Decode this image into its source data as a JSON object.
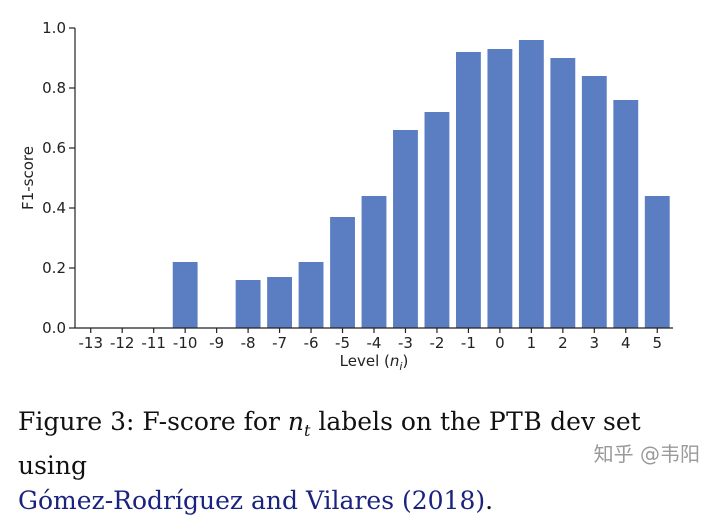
{
  "chart_data": {
    "type": "bar",
    "xlabel_main": "Level (",
    "xlabel_var": "n",
    "xlabel_sub": "i",
    "xlabel_end": ")",
    "ylabel": "F1-score",
    "ylim": [
      0,
      1.0
    ],
    "yticks": [
      "0.0",
      "0.2",
      "0.4",
      "0.6",
      "0.8",
      "1.0"
    ],
    "categories": [
      "-13",
      "-12",
      "-11",
      "-10",
      "-9",
      "-8",
      "-7",
      "-6",
      "-5",
      "-4",
      "-3",
      "-2",
      "-1",
      "0",
      "1",
      "2",
      "3",
      "4",
      "5"
    ],
    "values": [
      0,
      0,
      0,
      0.22,
      0,
      0.16,
      0.17,
      0.22,
      0.37,
      0.44,
      0.66,
      0.72,
      0.92,
      0.93,
      0.96,
      0.9,
      0.84,
      0.76,
      0.44
    ],
    "bar_color": "#5b7ec2",
    "grid": false
  },
  "caption": {
    "prefix": "Figure 3:  F-score for ",
    "var": "n",
    "var_sub": "t",
    "mid": " labels on the ",
    "smallcaps": "PTB",
    "suffix": " dev set using ",
    "citation": "Gómez-Rodríguez and Vilares (2018)",
    "end": "."
  },
  "watermark": "知乎 @韦阳"
}
